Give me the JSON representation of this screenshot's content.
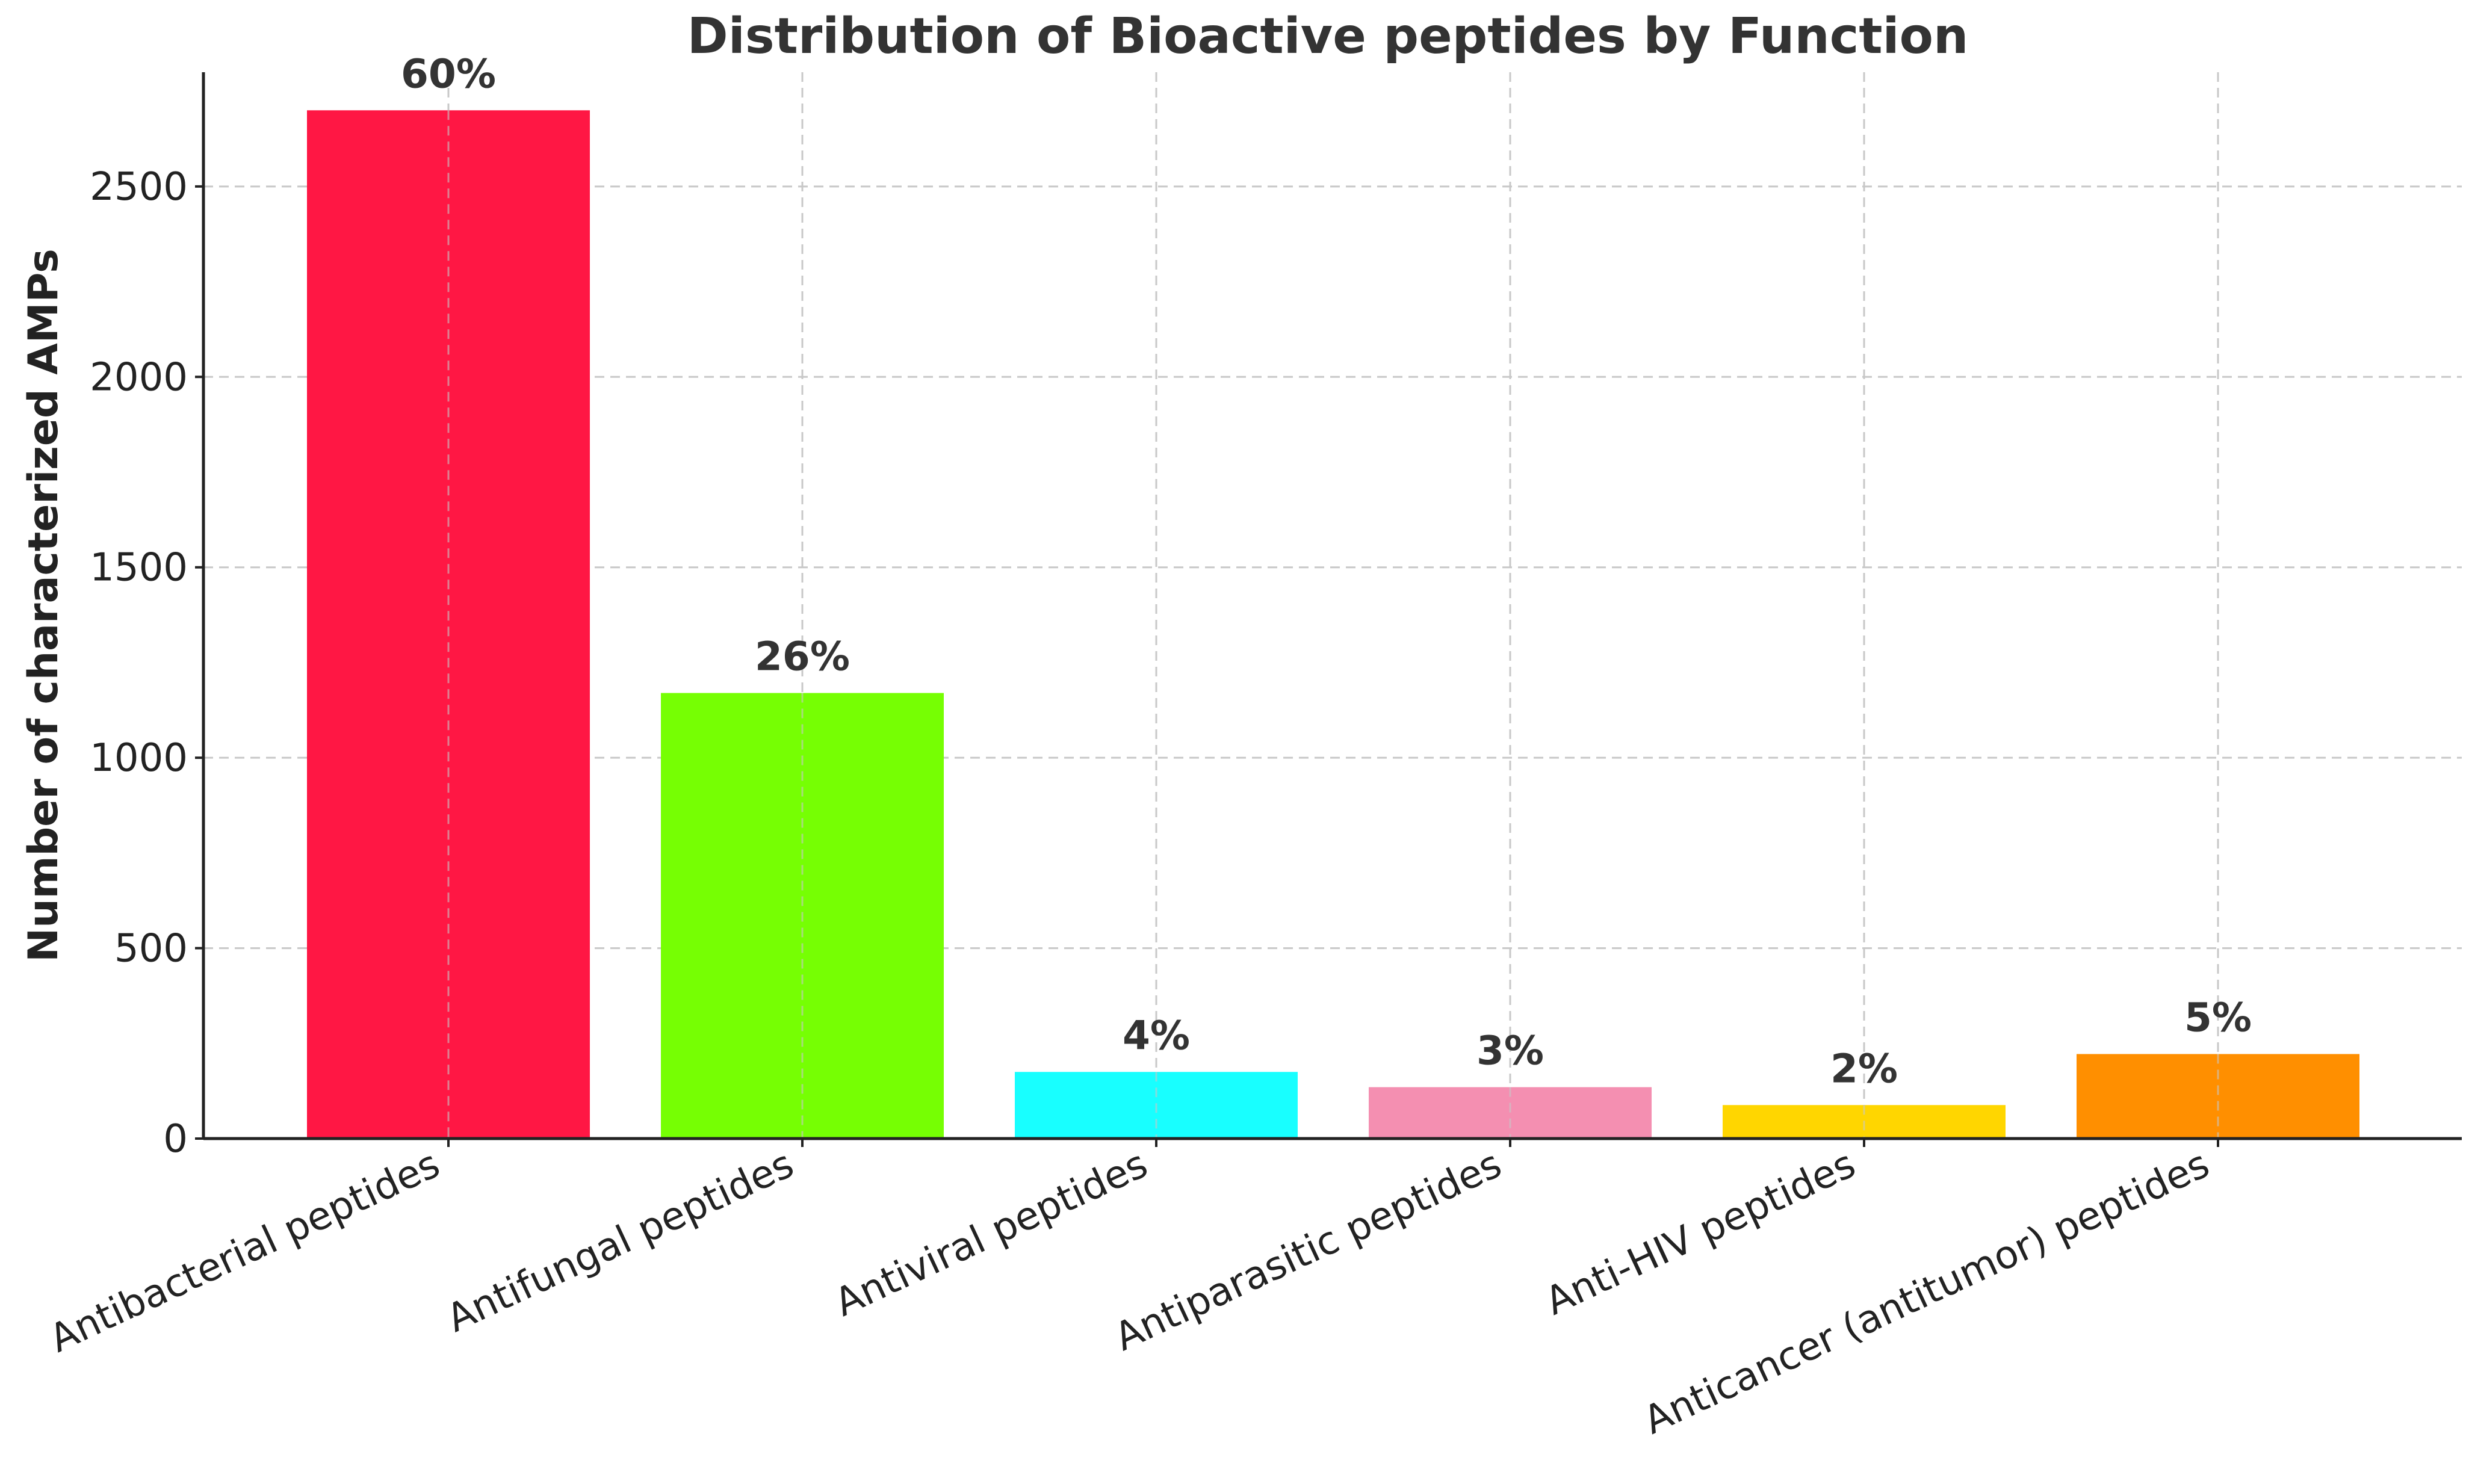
{
  "chart_data": {
    "type": "bar",
    "title": "Distribution of Bioactive peptides by Function",
    "xlabel": "",
    "ylabel": "Number of characterized AMPs",
    "ylim": [
      0,
      2800
    ],
    "yticks": [
      0,
      500,
      1000,
      1500,
      2000,
      2500
    ],
    "grid": true,
    "categories": [
      "Antibacterial peptides",
      "Antifungal peptides",
      "Antiviral peptides",
      "Antiparasitic peptides",
      "Anti-HIV peptides",
      "Anticancer (antitumor) peptides"
    ],
    "values": [
      2700,
      1170,
      175,
      135,
      88,
      222
    ],
    "labels": [
      "60%",
      "26%",
      "4%",
      "3%",
      "2%",
      "5%"
    ],
    "colors": [
      "#ff1744",
      "#76ff03",
      "#18ffff",
      "#f48fb1",
      "#ffd600",
      "#ff8f00"
    ]
  }
}
